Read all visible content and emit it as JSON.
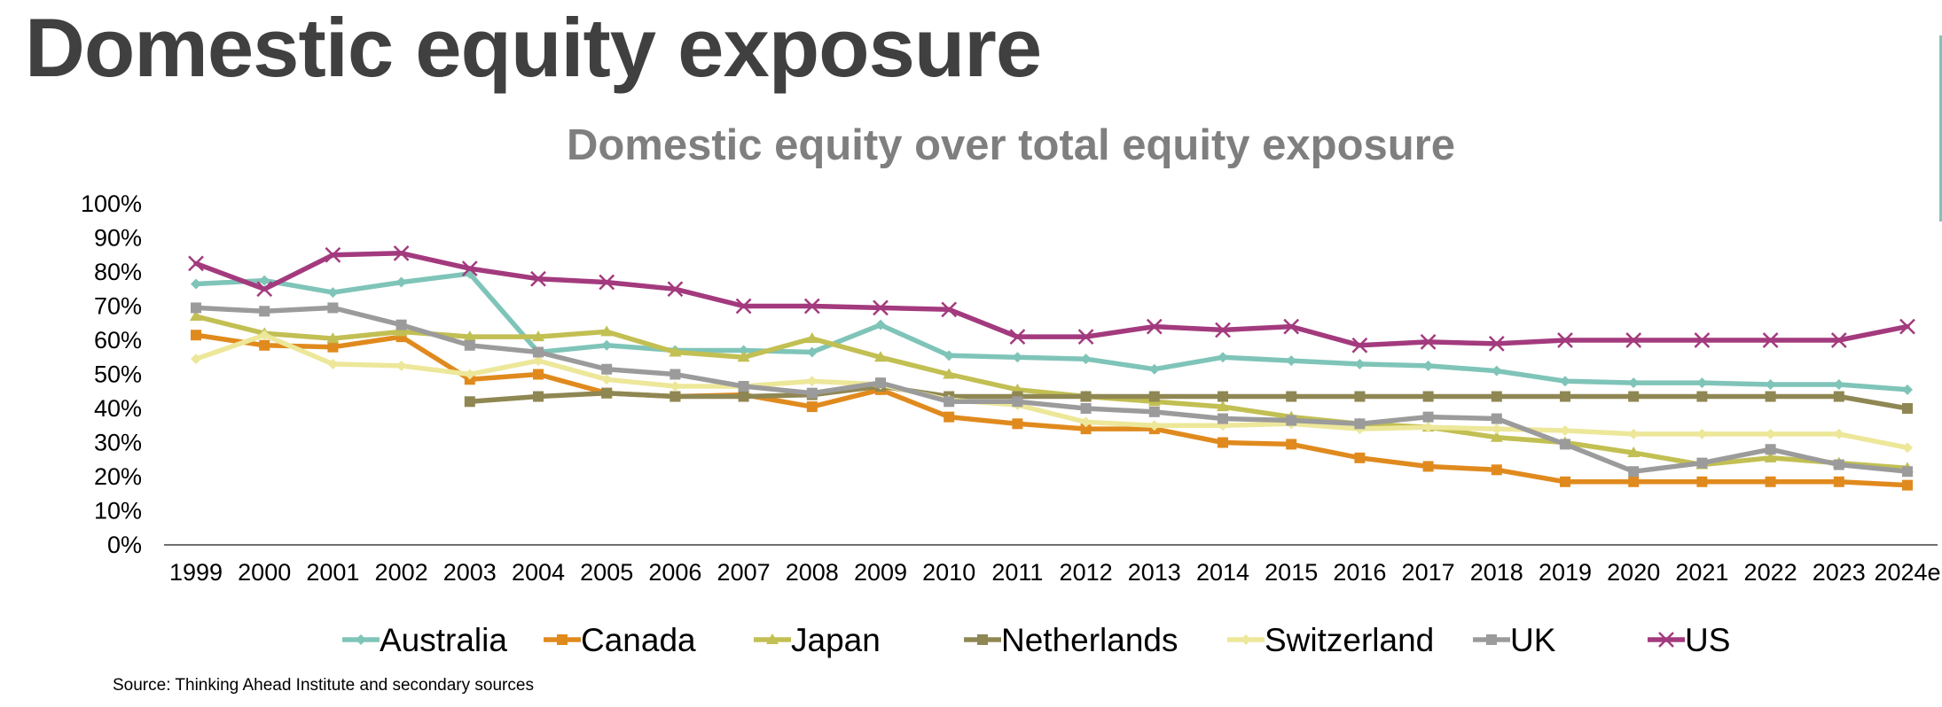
{
  "slide": {
    "title": "Domestic equity exposure",
    "source": "Source: Thinking Ahead Institute and secondary sources"
  },
  "chart_data": {
    "type": "line",
    "title": "Domestic equity over total equity exposure",
    "xlabel": "",
    "ylabel": "",
    "ylim": [
      0,
      100
    ],
    "yticks": [
      "0%",
      "10%",
      "20%",
      "30%",
      "40%",
      "50%",
      "60%",
      "70%",
      "80%",
      "90%",
      "100%"
    ],
    "grid": false,
    "legend": "bottom",
    "categories": [
      "1999",
      "2000",
      "2001",
      "2002",
      "2003",
      "2004",
      "2005",
      "2006",
      "2007",
      "2008",
      "2009",
      "2010",
      "2011",
      "2012",
      "2013",
      "2014",
      "2015",
      "2016",
      "2017",
      "2018",
      "2019",
      "2020",
      "2021",
      "2022",
      "2023",
      "2024e"
    ],
    "series": [
      {
        "name": "Australia",
        "color": "#7fc4b8",
        "marker": "diamond",
        "values": [
          76.5,
          77.5,
          74,
          77,
          79.5,
          56.5,
          58.5,
          57,
          57,
          56.5,
          64.5,
          55.5,
          55,
          54.5,
          51.5,
          55,
          54,
          53,
          52.5,
          51,
          48,
          47.5,
          47.5,
          47,
          47,
          45.5
        ]
      },
      {
        "name": "Canada",
        "color": "#e08a1e",
        "marker": "square",
        "values": [
          61.5,
          58.5,
          58,
          61,
          48.5,
          50,
          44.5,
          43.5,
          44,
          40.5,
          45.5,
          37.5,
          35.5,
          34,
          34,
          30,
          29.5,
          25.5,
          23,
          22,
          18.5,
          18.5,
          18.5,
          18.5,
          18.5,
          17.5
        ]
      },
      {
        "name": "Japan",
        "color": "#c2bf53",
        "marker": "triangle",
        "values": [
          67,
          62,
          60.5,
          62.5,
          61,
          61,
          62.5,
          56.5,
          55,
          60.5,
          55,
          50,
          45.5,
          43.5,
          42,
          40.5,
          37.5,
          35.5,
          34.5,
          31.5,
          30,
          27,
          23.5,
          25.5,
          24,
          22.5
        ]
      },
      {
        "name": "Netherlands",
        "color": "#8f8753",
        "marker": "square",
        "values": [
          null,
          null,
          null,
          null,
          42,
          43.5,
          44.5,
          43.5,
          43.5,
          44,
          46.5,
          43.5,
          43.5,
          43.5,
          43.5,
          43.5,
          43.5,
          43.5,
          43.5,
          43.5,
          43.5,
          43.5,
          43.5,
          43.5,
          43.5,
          40
        ]
      },
      {
        "name": "Switzerland",
        "color": "#ede79a",
        "marker": "diamond",
        "values": [
          54.5,
          61.5,
          53,
          52.5,
          50,
          54,
          48.5,
          46.5,
          46.5,
          48,
          47,
          42.5,
          41,
          36,
          35,
          35,
          35.5,
          34,
          34.5,
          34,
          33.5,
          32.5,
          32.5,
          32.5,
          32.5,
          28.5
        ]
      },
      {
        "name": "UK",
        "color": "#9b9b9b",
        "marker": "square",
        "values": [
          69.5,
          68.5,
          69.5,
          64.5,
          58.5,
          56.5,
          51.5,
          50,
          46.5,
          44.5,
          47.5,
          42,
          42,
          40,
          39,
          37,
          36.5,
          35.5,
          37.5,
          37,
          29.5,
          21.5,
          24,
          28,
          23.5,
          21.5
        ]
      },
      {
        "name": "US",
        "color": "#a33a7e",
        "marker": "x",
        "values": [
          82.5,
          75,
          85,
          85.5,
          81,
          78,
          77,
          75,
          70,
          70,
          69.5,
          69,
          61,
          61,
          64,
          63,
          64,
          58.5,
          59.5,
          59,
          60,
          60,
          60,
          60,
          60,
          64
        ]
      }
    ]
  }
}
